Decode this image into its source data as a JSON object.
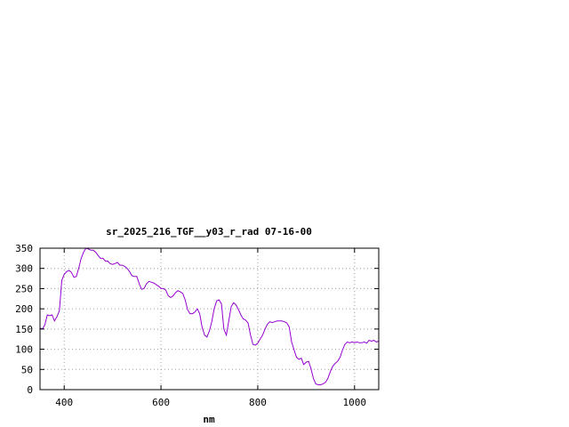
{
  "chart_data": {
    "type": "line",
    "title": "sr_2025_216_TGF__y03_r_rad 07-16-00",
    "xlabel": "nm",
    "ylabel": "",
    "xlim": [
      350,
      1050
    ],
    "ylim": [
      0,
      350
    ],
    "xticks": [
      400,
      600,
      800,
      1000
    ],
    "yticks": [
      0,
      50,
      100,
      150,
      200,
      250,
      300,
      350
    ],
    "grid": true,
    "line_color": "#9400d3",
    "series": [
      {
        "x": [
          350,
          355,
          360,
          365,
          370,
          375,
          380,
          385,
          390,
          395,
          400,
          405,
          410,
          415,
          420,
          425,
          430,
          435,
          440,
          445,
          450,
          455,
          460,
          465,
          470,
          475,
          480,
          485,
          490,
          495,
          500,
          505,
          510,
          515,
          520,
          525,
          530,
          535,
          540,
          545,
          550,
          555,
          560,
          565,
          570,
          575,
          580,
          585,
          590,
          595,
          600,
          605,
          610,
          615,
          620,
          625,
          630,
          635,
          640,
          645,
          650,
          655,
          660,
          665,
          670,
          675,
          680,
          685,
          690,
          695,
          700,
          705,
          710,
          715,
          720,
          725,
          730,
          735,
          740,
          745,
          750,
          755,
          760,
          765,
          770,
          775,
          780,
          785,
          790,
          795,
          800,
          805,
          810,
          815,
          820,
          825,
          830,
          835,
          840,
          845,
          850,
          855,
          860,
          865,
          870,
          875,
          880,
          885,
          890,
          895,
          900,
          905,
          910,
          915,
          920,
          925,
          930,
          935,
          940,
          945,
          950,
          955,
          960,
          965,
          970,
          975,
          980,
          985,
          990,
          995,
          1000,
          1005,
          1010,
          1015,
          1020,
          1025,
          1030,
          1035,
          1040,
          1045,
          1050
        ],
        "y": [
          152,
          150,
          160,
          185,
          183,
          185,
          170,
          180,
          195,
          270,
          285,
          292,
          295,
          290,
          278,
          280,
          300,
          325,
          340,
          350,
          348,
          345,
          345,
          340,
          332,
          325,
          325,
          318,
          318,
          312,
          310,
          312,
          315,
          308,
          308,
          305,
          300,
          292,
          282,
          280,
          280,
          262,
          248,
          250,
          262,
          268,
          266,
          264,
          260,
          256,
          250,
          250,
          246,
          232,
          228,
          232,
          240,
          245,
          242,
          238,
          222,
          198,
          188,
          188,
          192,
          200,
          188,
          155,
          135,
          130,
          145,
          168,
          200,
          220,
          222,
          212,
          150,
          135,
          170,
          205,
          215,
          210,
          198,
          185,
          175,
          172,
          165,
          135,
          112,
          110,
          115,
          125,
          135,
          150,
          162,
          168,
          166,
          168,
          170,
          170,
          170,
          168,
          165,
          155,
          118,
          98,
          80,
          75,
          78,
          62,
          68,
          70,
          52,
          28,
          14,
          12,
          12,
          14,
          18,
          28,
          45,
          58,
          65,
          70,
          80,
          98,
          112,
          118,
          116,
          118,
          116,
          118,
          116,
          116,
          118,
          115,
          122,
          120,
          122,
          118,
          120
        ]
      }
    ]
  }
}
